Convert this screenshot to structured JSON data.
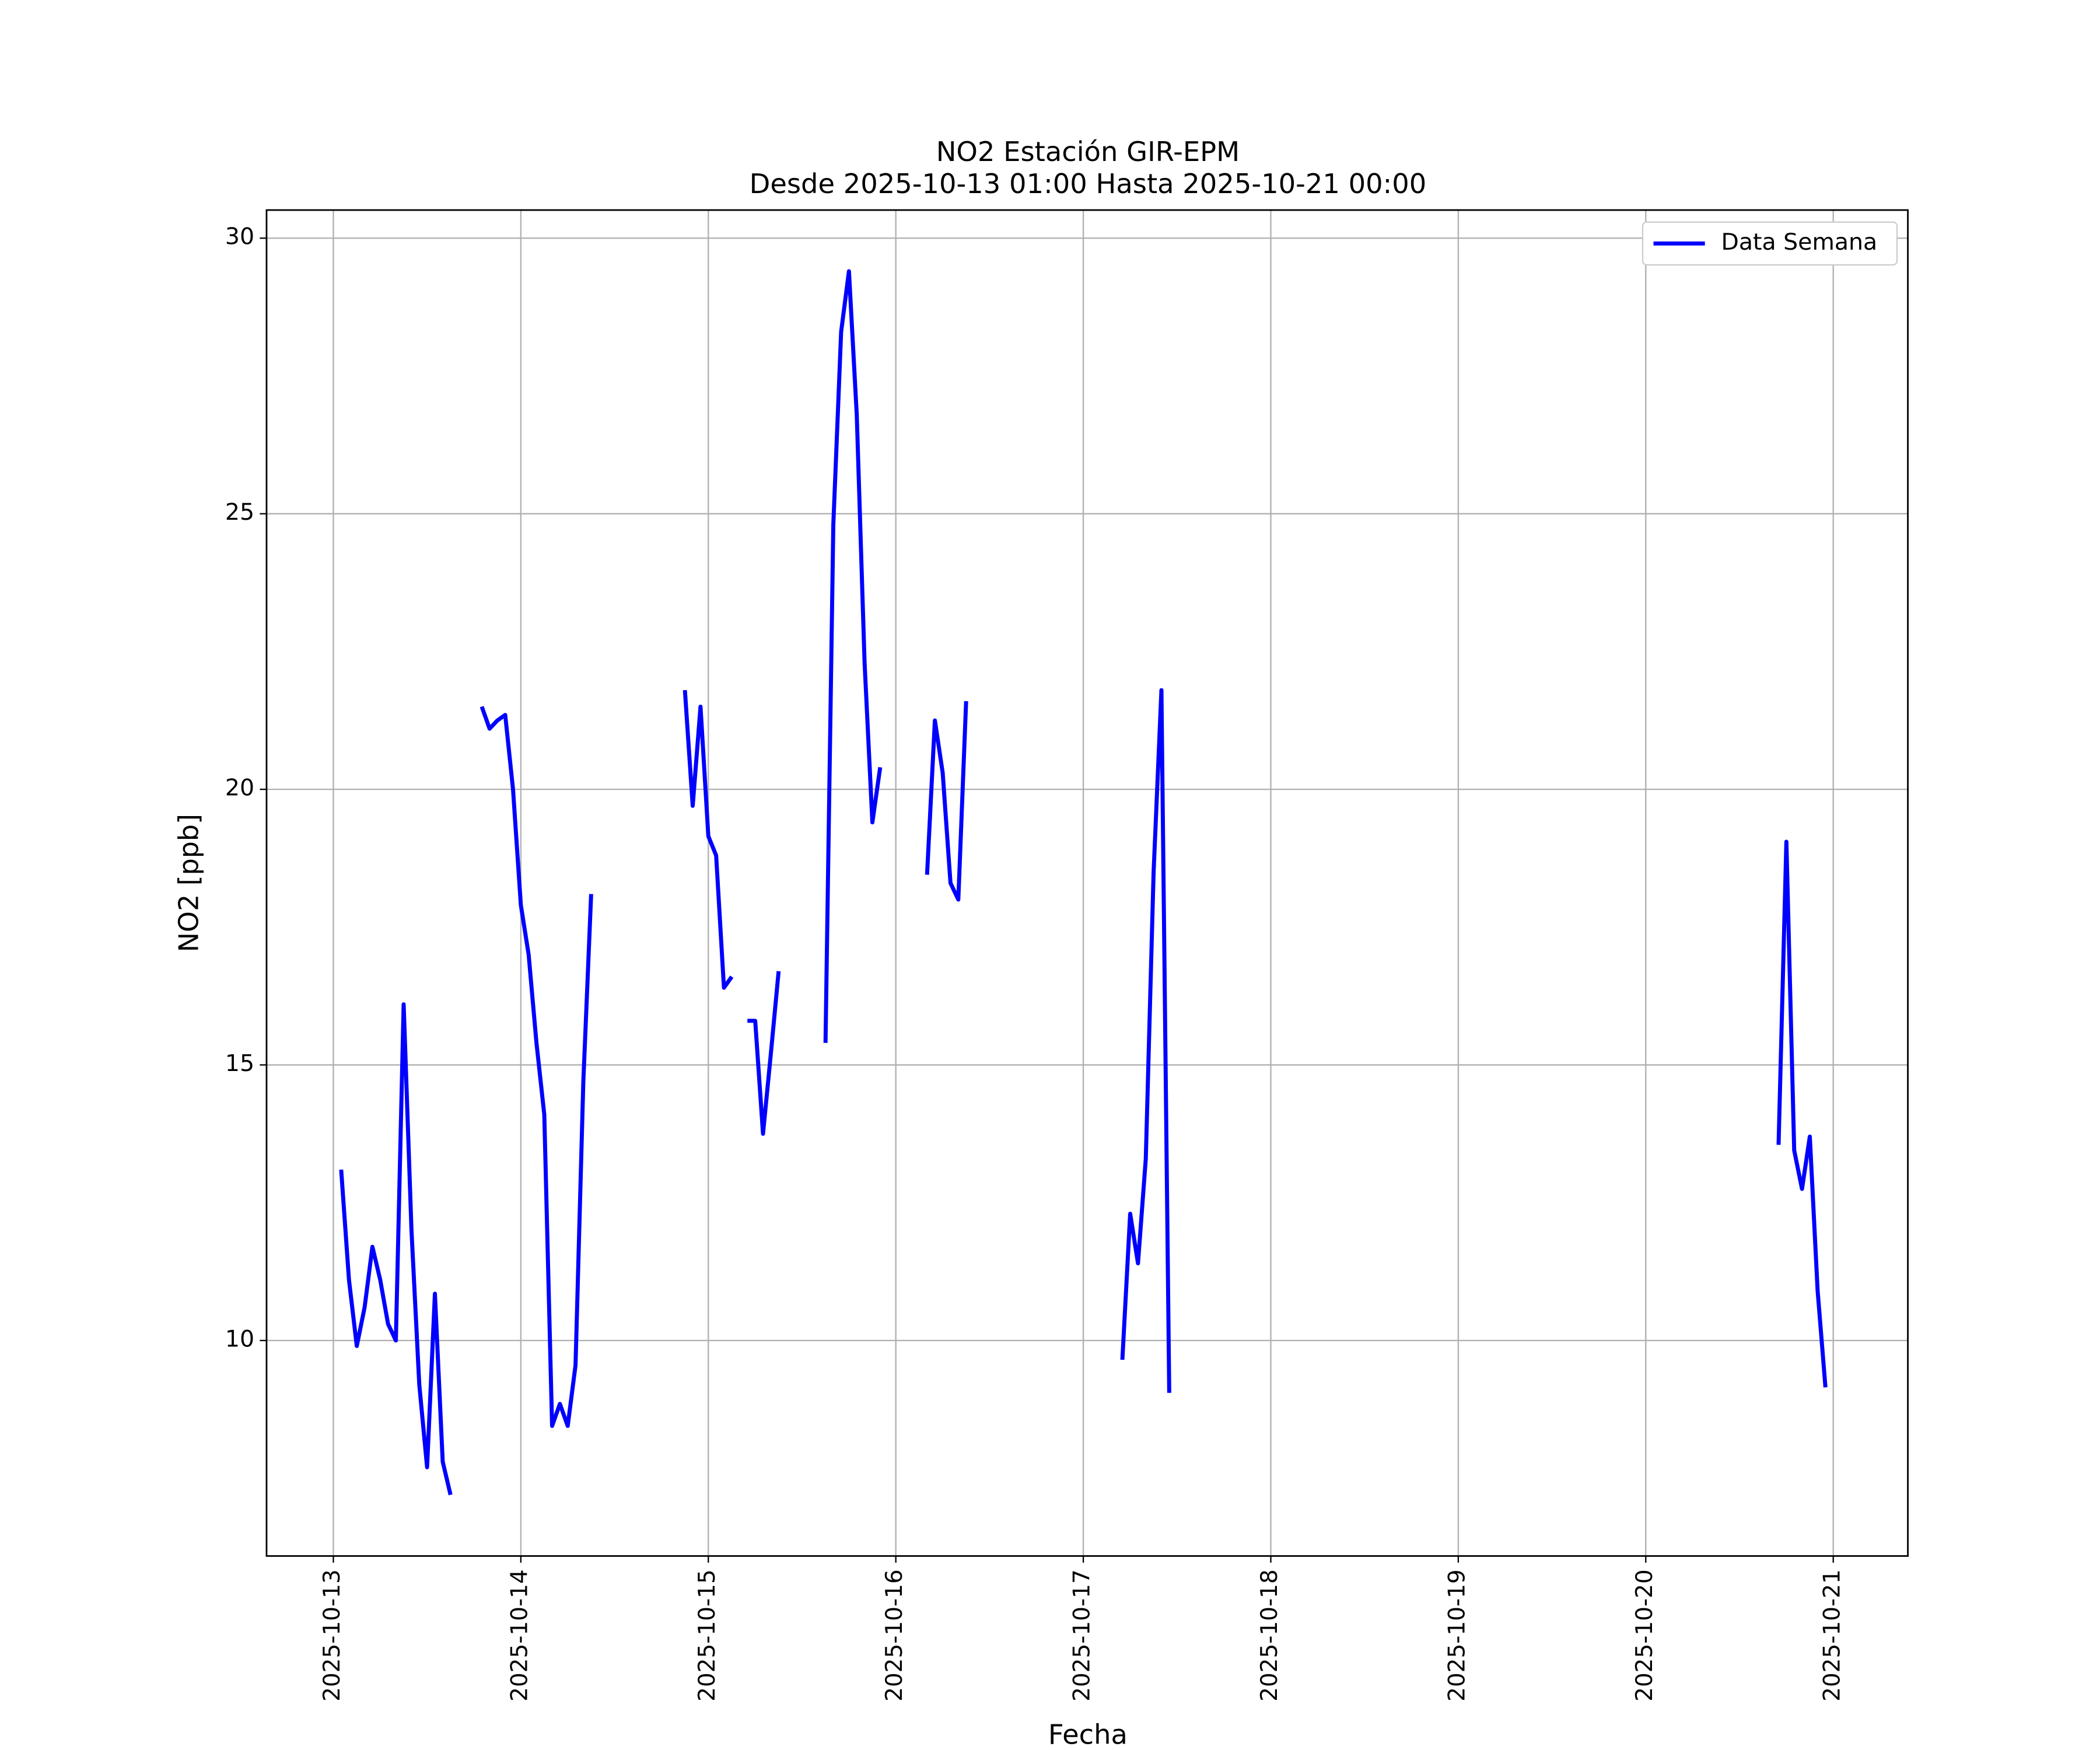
{
  "chart_data": {
    "type": "line",
    "title": "NO2 Estación GIR-EPM",
    "subtitle": "Desde 2025-10-13 01:00 Hasta 2025-10-21 00:00",
    "xlabel": "Fecha",
    "ylabel": "NO2 [ppb]",
    "x": [
      "2025-10-13 01:00",
      "2025-10-13 02:00",
      "2025-10-13 03:00",
      "2025-10-13 04:00",
      "2025-10-13 05:00",
      "2025-10-13 06:00",
      "2025-10-13 07:00",
      "2025-10-13 08:00",
      "2025-10-13 09:00",
      "2025-10-13 10:00",
      "2025-10-13 11:00",
      "2025-10-13 12:00",
      "2025-10-13 13:00",
      "2025-10-13 14:00",
      "2025-10-13 15:00",
      "2025-10-13 16:00",
      "2025-10-13 19:00",
      "2025-10-13 20:00",
      "2025-10-13 21:00",
      "2025-10-13 22:00",
      "2025-10-13 23:00",
      "2025-10-14 00:00",
      "2025-10-14 01:00",
      "2025-10-14 02:00",
      "2025-10-14 03:00",
      "2025-10-14 04:00",
      "2025-10-14 05:00",
      "2025-10-14 06:00",
      "2025-10-14 07:00",
      "2025-10-14 08:00",
      "2025-10-14 09:00",
      "2025-10-14 10:00",
      "2025-10-14 21:00",
      "2025-10-14 22:00",
      "2025-10-14 23:00",
      "2025-10-15 00:00",
      "2025-10-15 01:00",
      "2025-10-15 02:00",
      "2025-10-15 03:00",
      "2025-10-15 04:00",
      "2025-10-15 05:00",
      "2025-10-15 06:00",
      "2025-10-15 07:00",
      "2025-10-15 08:00",
      "2025-10-15 09:00",
      "2025-10-15 10:00",
      "2025-10-15 15:00",
      "2025-10-15 16:00",
      "2025-10-15 17:00",
      "2025-10-15 18:00",
      "2025-10-15 19:00",
      "2025-10-15 20:00",
      "2025-10-15 21:00",
      "2025-10-15 22:00",
      "2025-10-15 23:00",
      "2025-10-16 04:00",
      "2025-10-16 05:00",
      "2025-10-16 06:00",
      "2025-10-16 07:00",
      "2025-10-16 08:00",
      "2025-10-16 09:00",
      "2025-10-16 10:00",
      "2025-10-17 05:00",
      "2025-10-17 06:00",
      "2025-10-17 07:00",
      "2025-10-17 08:00",
      "2025-10-17 09:00",
      "2025-10-17 10:00",
      "2025-10-17 11:00",
      "2025-10-17 12:00",
      "2025-10-20 17:00",
      "2025-10-20 18:00",
      "2025-10-20 19:00",
      "2025-10-20 20:00",
      "2025-10-20 21:00",
      "2025-10-20 22:00",
      "2025-10-20 23:00",
      "2025-10-21 00:00"
    ],
    "series": [
      {
        "name": "Data Semana",
        "color": "#0000ff",
        "values": [
          13.1,
          11.1,
          9.9,
          10.6,
          11.7,
          11.1,
          10.3,
          10.0,
          16.1,
          12.0,
          9.2,
          7.7,
          10.85,
          7.8,
          7.2,
          null,
          21.5,
          21.1,
          21.25,
          21.35,
          20.0,
          17.9,
          17.0,
          15.4,
          14.1,
          8.45,
          8.85,
          8.45,
          9.55,
          14.7,
          18.1,
          null,
          21.8,
          19.7,
          21.5,
          19.15,
          18.8,
          16.4,
          16.6,
          null,
          15.8,
          15.8,
          13.75,
          15.2,
          16.7,
          null,
          15.4,
          24.8,
          28.3,
          29.4,
          26.8,
          22.3,
          19.4,
          20.4,
          null,
          18.45,
          21.25,
          20.3,
          18.3,
          18.0,
          21.6,
          null,
          9.65,
          12.3,
          11.4,
          13.3,
          18.5,
          21.8,
          9.05,
          null,
          13.55,
          19.05,
          13.45,
          12.75,
          13.7,
          10.9,
          9.15,
          null
        ]
      }
    ],
    "xlim": [
      "2025-10-12 15:27",
      "2025-10-21 09:33"
    ],
    "xticks": [
      "2025-10-13",
      "2025-10-14",
      "2025-10-15",
      "2025-10-16",
      "2025-10-17",
      "2025-10-18",
      "2025-10-19",
      "2025-10-20",
      "2025-10-21"
    ],
    "ylim": [
      6.09,
      30.51
    ],
    "yticks": [
      10,
      15,
      20,
      25,
      30
    ],
    "grid": true,
    "legend": "upper right"
  }
}
